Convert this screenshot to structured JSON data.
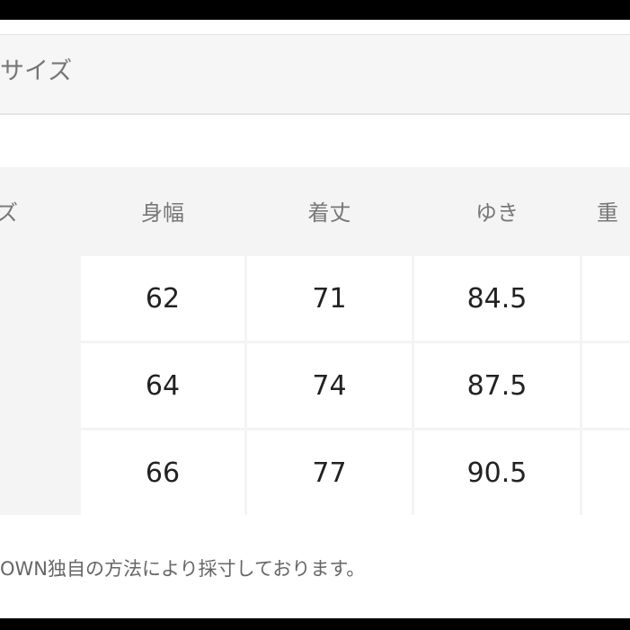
{
  "section": {
    "title": "サイズ"
  },
  "table": {
    "header": [
      "ズ",
      "身幅",
      "着丈",
      "ゆき",
      "重"
    ],
    "rows": [
      [
        62,
        71,
        84.5
      ],
      [
        64,
        74,
        87.5
      ],
      [
        66,
        77,
        90.5
      ]
    ]
  },
  "note": "OWN独自の方法により採寸しております。"
}
